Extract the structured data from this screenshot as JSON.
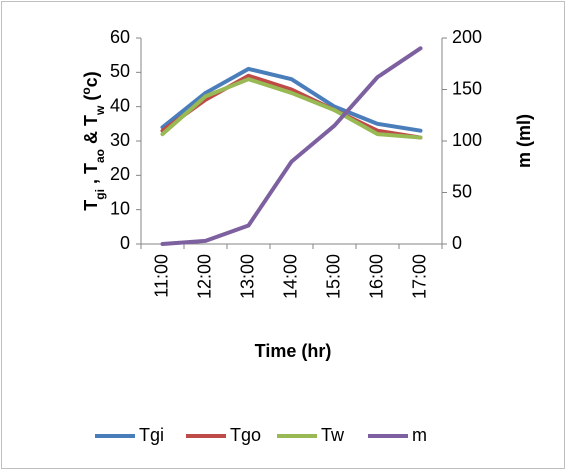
{
  "chart_data": {
    "type": "line",
    "categories": [
      "11:00",
      "12:00",
      "13:00",
      "14:00",
      "15:00",
      "16:00",
      "17:00"
    ],
    "series": [
      {
        "name": "Tgi",
        "color": "#4a7ebb",
        "values": [
          34,
          44,
          51,
          48,
          40,
          35,
          33
        ]
      },
      {
        "name": "Tgo",
        "color": "#be4b48",
        "values": [
          33,
          42,
          49,
          45,
          39,
          33,
          31
        ]
      },
      {
        "name": "Tw",
        "color": "#98b954",
        "values": [
          32,
          43,
          48,
          44,
          39,
          32,
          31
        ]
      },
      {
        "name": "m",
        "color": "#7d60a0",
        "values": [
          0,
          3,
          18,
          80,
          115,
          162,
          190
        ],
        "axis": "y2"
      }
    ],
    "ylim": [
      0,
      60
    ],
    "yticks": [
      0,
      10,
      20,
      30,
      40,
      50,
      60
    ],
    "y2lim": [
      0,
      200
    ],
    "y2ticks": [
      0,
      50,
      100,
      150,
      200
    ],
    "x_label": "Time (hr)",
    "y_label": [
      {
        "text": "T"
      },
      {
        "text": "gi",
        "shift": "sub"
      },
      {
        "text": " , T"
      },
      {
        "text": "ao",
        "shift": "sub"
      },
      {
        "text": " & T"
      },
      {
        "text": "w",
        "shift": "sub"
      },
      {
        "text": "  ("
      },
      {
        "text": "o",
        "shift": "super"
      },
      {
        "text": "c)"
      }
    ],
    "y2_label": "m (ml)",
    "legend": "bottom",
    "grid": false
  }
}
